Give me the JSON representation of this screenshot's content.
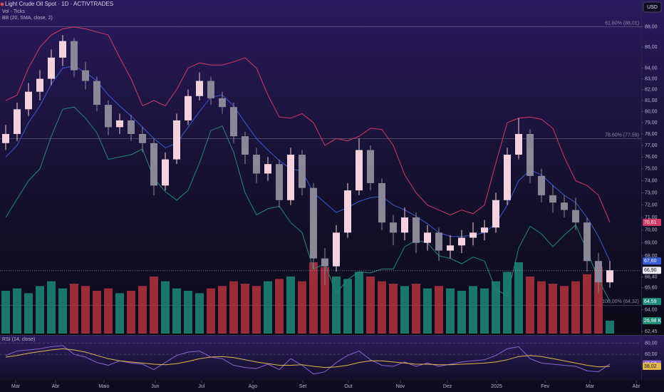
{
  "chart_data": {
    "type": "candlestick",
    "title": "Light Crude Oil Spot · 1D · ACTIVTRADES",
    "volume_title": "Vol · Ticks",
    "bb_title": "BB (20, SMA, close, 2)",
    "rsi_title": "RSI (14, close)",
    "currency": "USD",
    "log_scale": true,
    "up_color": "#f4d2de",
    "down_color": "#8a8898",
    "volume_up_color": "#1f8a78",
    "volume_down_color": "#b3343f",
    "xlim": [
      0,
      281.25
    ],
    "xticks": [
      {
        "value": 6.9,
        "label": "Mar"
      },
      {
        "value": 24.4,
        "label": "Abr"
      },
      {
        "value": 45.6,
        "label": "Maio"
      },
      {
        "value": 68.1,
        "label": "Jun"
      },
      {
        "value": 88.4,
        "label": "Jul"
      },
      {
        "value": 110.9,
        "label": "Ago"
      },
      {
        "value": 132.8,
        "label": "Set"
      },
      {
        "value": 152.8,
        "label": "Out"
      },
      {
        "value": 175.6,
        "label": "Nov"
      },
      {
        "value": 196.3,
        "label": "Dez"
      },
      {
        "value": 217.8,
        "label": "2025"
      },
      {
        "value": 239.1,
        "label": "Fev"
      },
      {
        "value": 258.8,
        "label": "Mar"
      },
      {
        "value": 279.1,
        "label": "Abr"
      }
    ],
    "ylim": [
      62.2,
      90.7
    ],
    "yticks": [
      {
        "value": 88,
        "label": "88,00"
      },
      {
        "value": 86,
        "label": "86,00"
      },
      {
        "value": 84,
        "label": "84,00"
      },
      {
        "value": 83,
        "label": "83,00"
      },
      {
        "value": 82,
        "label": "82,00"
      },
      {
        "value": 81,
        "label": "81,00"
      },
      {
        "value": 80,
        "label": "80,00"
      },
      {
        "value": 79,
        "label": "79,00"
      },
      {
        "value": 78,
        "label": "78,00"
      },
      {
        "value": 77,
        "label": "77,00"
      },
      {
        "value": 76,
        "label": "76,00"
      },
      {
        "value": 75,
        "label": "75,00"
      },
      {
        "value": 74,
        "label": "74,00"
      },
      {
        "value": 73,
        "label": "73,00"
      },
      {
        "value": 72,
        "label": "72,00"
      },
      {
        "value": 71,
        "label": "71,00"
      },
      {
        "value": 70,
        "label": "70,00"
      },
      {
        "value": 69,
        "label": "69,00"
      },
      {
        "value": 68,
        "label": "68,00"
      },
      {
        "value": 66.4,
        "label": "66,40"
      },
      {
        "value": 65.6,
        "label": "65,60"
      },
      {
        "value": 64,
        "label": "64,00"
      },
      {
        "value": 63.2,
        "label": "63,20"
      },
      {
        "value": 62.45,
        "label": "62,45"
      }
    ],
    "fib_levels": [
      {
        "value": 88.01,
        "label": "61,80% (88,01)"
      },
      {
        "value": 77.59,
        "label": "78,60% (77,59)"
      },
      {
        "value": 64.32,
        "label": "100,00% (64,32)"
      }
    ],
    "x": [
      2.5,
      7.5,
      12.5,
      17.5,
      22.5,
      27.5,
      32.5,
      37.5,
      42.5,
      47.5,
      52.5,
      57.5,
      62.5,
      67.5,
      72.5,
      77.5,
      82.5,
      87.5,
      92.5,
      97.5,
      102.5,
      107.5,
      112.5,
      117.5,
      122.5,
      127.5,
      132.5,
      137.5,
      142.5,
      147.5,
      152.5,
      157.5,
      162.5,
      167.5,
      172.5,
      177.5,
      182.5,
      187.5,
      192.5,
      197.5,
      202.5,
      207.5,
      212.5,
      217.5,
      222.5,
      227.5,
      232.5,
      237.5,
      242.5,
      247.5,
      252.5,
      257.5,
      262.5,
      267.5
    ],
    "open": [
      77.2,
      78.0,
      80.2,
      81.8,
      83.0,
      85.0,
      86.6,
      83.8,
      82.8,
      80.6,
      78.6,
      79.2,
      78.0,
      77.2,
      73.6,
      75.8,
      79.2,
      81.4,
      82.8,
      81.2,
      80.4,
      77.8,
      76.2,
      74.6,
      75.4,
      72.4,
      76.2,
      73.4,
      67.8,
      67.2,
      69.8,
      73.2,
      76.6,
      73.8,
      70.6,
      69.8,
      71.0,
      69.0,
      69.8,
      68.4,
      68.8,
      69.4,
      69.8,
      70.2,
      72.4,
      76.2,
      78.0,
      74.4,
      72.8,
      72.2,
      71.6,
      70.6,
      67.6,
      66.0
    ],
    "high": [
      78.8,
      80.8,
      82.6,
      83.8,
      85.8,
      87.2,
      86.9,
      84.6,
      83.2,
      81.0,
      79.8,
      79.7,
      78.6,
      77.6,
      76.4,
      79.8,
      82.0,
      83.6,
      83.2,
      81.8,
      80.8,
      78.2,
      76.8,
      76.0,
      75.8,
      76.8,
      76.6,
      73.8,
      68.6,
      70.4,
      73.8,
      77.6,
      77.0,
      74.2,
      71.2,
      71.8,
      71.4,
      70.4,
      70.2,
      69.6,
      70.0,
      70.6,
      70.8,
      73.0,
      76.8,
      79.4,
      78.4,
      75.0,
      73.6,
      72.8,
      72.6,
      71.0,
      68.2,
      67.6
    ],
    "low": [
      76.6,
      77.4,
      79.6,
      81.0,
      82.4,
      84.2,
      83.2,
      82.0,
      80.0,
      77.9,
      78.0,
      77.4,
      76.4,
      72.8,
      73.2,
      75.4,
      78.8,
      81.0,
      80.6,
      79.8,
      77.2,
      75.4,
      73.8,
      74.0,
      71.8,
      72.0,
      72.8,
      67.0,
      65.8,
      66.8,
      69.4,
      72.8,
      73.2,
      70.0,
      68.8,
      69.2,
      68.2,
      68.4,
      67.6,
      67.8,
      68.2,
      68.8,
      69.2,
      69.8,
      72.0,
      75.8,
      73.8,
      72.2,
      71.4,
      71.0,
      70.0,
      66.8,
      65.2,
      65.6
    ],
    "close": {
      "values": [
        78.0,
        80.2,
        81.8,
        83.0,
        85.0,
        86.6,
        83.8,
        82.8,
        80.6,
        78.6,
        79.2,
        78.0,
        77.2,
        73.6,
        75.8,
        79.2,
        81.4,
        82.8,
        81.2,
        80.4,
        77.8,
        76.2,
        74.6,
        75.4,
        72.4,
        76.2,
        73.4,
        67.8,
        67.2,
        69.8,
        73.2,
        76.6,
        73.8,
        70.6,
        69.8,
        71.0,
        69.0,
        69.8,
        68.4,
        68.8,
        69.4,
        69.8,
        70.2,
        72.4,
        76.2,
        78.0,
        74.4,
        72.8,
        72.2,
        71.6,
        70.6,
        67.6,
        66.0,
        66.9
      ],
      "value_labels": {
        "53": "66,90"
      }
    },
    "bb": [
      {
        "name": "upper",
        "color": "#d23a63",
        "values": [
          81,
          81.5,
          84,
          86,
          87.2,
          87.8,
          88,
          87.8,
          87.5,
          87.2,
          85,
          83,
          80.5,
          81,
          80.5,
          82,
          84,
          84.5,
          84.3,
          84.3,
          84.6,
          85,
          84,
          81.5,
          79.5,
          79.4,
          79.8,
          79,
          77,
          77.6,
          77.4,
          77.8,
          78.5,
          78.4,
          77,
          74.5,
          73,
          72,
          71.6,
          71.2,
          71.6,
          71.3,
          72,
          75.5,
          79,
          79.4,
          79.5,
          79.3,
          78.5,
          76,
          74,
          73.6,
          72.8,
          70.61
        ],
        "value_labels": {
          "53": "70,61"
        }
      },
      {
        "name": "basis",
        "color": "#3a5ad8",
        "values": [
          76,
          77,
          79,
          80.5,
          82.5,
          84,
          84.2,
          83.6,
          82.8,
          81.5,
          80.5,
          79.6,
          78.6,
          77.6,
          76.8,
          77.2,
          78.6,
          80,
          81.3,
          81.5,
          80.5,
          79,
          77.6,
          76.6,
          75.7,
          75,
          74.8,
          73,
          72.2,
          71.4,
          71.8,
          72.3,
          72.6,
          72.7,
          72,
          71.6,
          71.1,
          70.5,
          69.8,
          69.5,
          69.5,
          69.6,
          69.8,
          70.5,
          72,
          74,
          74.9,
          74.5,
          73.6,
          72.8,
          72.2,
          71,
          69.5,
          67.6
        ],
        "value_labels": {
          "53": "67,60"
        }
      },
      {
        "name": "lower",
        "color": "#1f8a78",
        "values": [
          71,
          72.5,
          74,
          75,
          77.8,
          80.2,
          80.4,
          79.4,
          78.1,
          75.8,
          76,
          76.2,
          76.7,
          74.2,
          73.1,
          72.4,
          73.2,
          75.5,
          78.3,
          78.7,
          76.4,
          73,
          71.2,
          71.7,
          71.9,
          70.6,
          69.8,
          67,
          67.4,
          65.2,
          66.2,
          66.8,
          66.7,
          67,
          67,
          68.7,
          69.2,
          69,
          68,
          67.8,
          67.4,
          67.9,
          67.6,
          65.5,
          65,
          68.6,
          70.3,
          69.7,
          68.7,
          69.6,
          70.4,
          68.4,
          66.2,
          64.59
        ],
        "value_labels": {
          "53": "64,59"
        }
      }
    ],
    "vlim": [
      0,
      165
    ],
    "volume": {
      "values": [
        90,
        95,
        85,
        100,
        110,
        95,
        105,
        100,
        90,
        95,
        85,
        90,
        100,
        120,
        110,
        95,
        90,
        85,
        95,
        100,
        110,
        105,
        100,
        110,
        115,
        120,
        110,
        150,
        140,
        120,
        115,
        130,
        120,
        110,
        105,
        100,
        105,
        95,
        100,
        95,
        90,
        100,
        95,
        110,
        130,
        150,
        120,
        110,
        105,
        100,
        110,
        125,
        140,
        26.98
      ],
      "value_labels": {
        "53": "26,98 K"
      }
    },
    "rsi_ylim": [
      12,
      94
    ],
    "rsi_yticks": [
      {
        "value": 80,
        "label": "80,00"
      },
      {
        "value": 60,
        "label": "60,00"
      }
    ],
    "rsi": [
      {
        "name": "RSI",
        "color": "#8a63d2",
        "values": [
          58,
          66,
          68,
          70,
          74,
          76,
          60,
          55,
          45,
          40,
          48,
          44,
          42,
          32,
          45,
          58,
          64,
          66,
          55,
          52,
          40,
          36,
          34,
          42,
          32,
          52,
          40,
          24,
          28,
          45,
          58,
          66,
          50,
          40,
          38,
          46,
          38,
          44,
          38,
          42,
          46,
          48,
          50,
          58,
          70,
          74,
          52,
          44,
          42,
          40,
          38,
          30,
          28,
          42.52
        ],
        "value_labels": {
          "53": "42,52"
        }
      },
      {
        "name": "MA",
        "color": "#e2b54a",
        "values": [
          55,
          58,
          62,
          65,
          68,
          70,
          68,
          64,
          58,
          52,
          48,
          46,
          44,
          42,
          41,
          43,
          47,
          52,
          55,
          56,
          54,
          50,
          46,
          43,
          40,
          40,
          41,
          38,
          36,
          37,
          40,
          45,
          48,
          48,
          46,
          44,
          42,
          42,
          41,
          41,
          42,
          43,
          44,
          46,
          50,
          56,
          58,
          56,
          52,
          48,
          44,
          40,
          37,
          38.02
        ],
        "value_labels": {
          "53": "38,02"
        }
      }
    ]
  }
}
